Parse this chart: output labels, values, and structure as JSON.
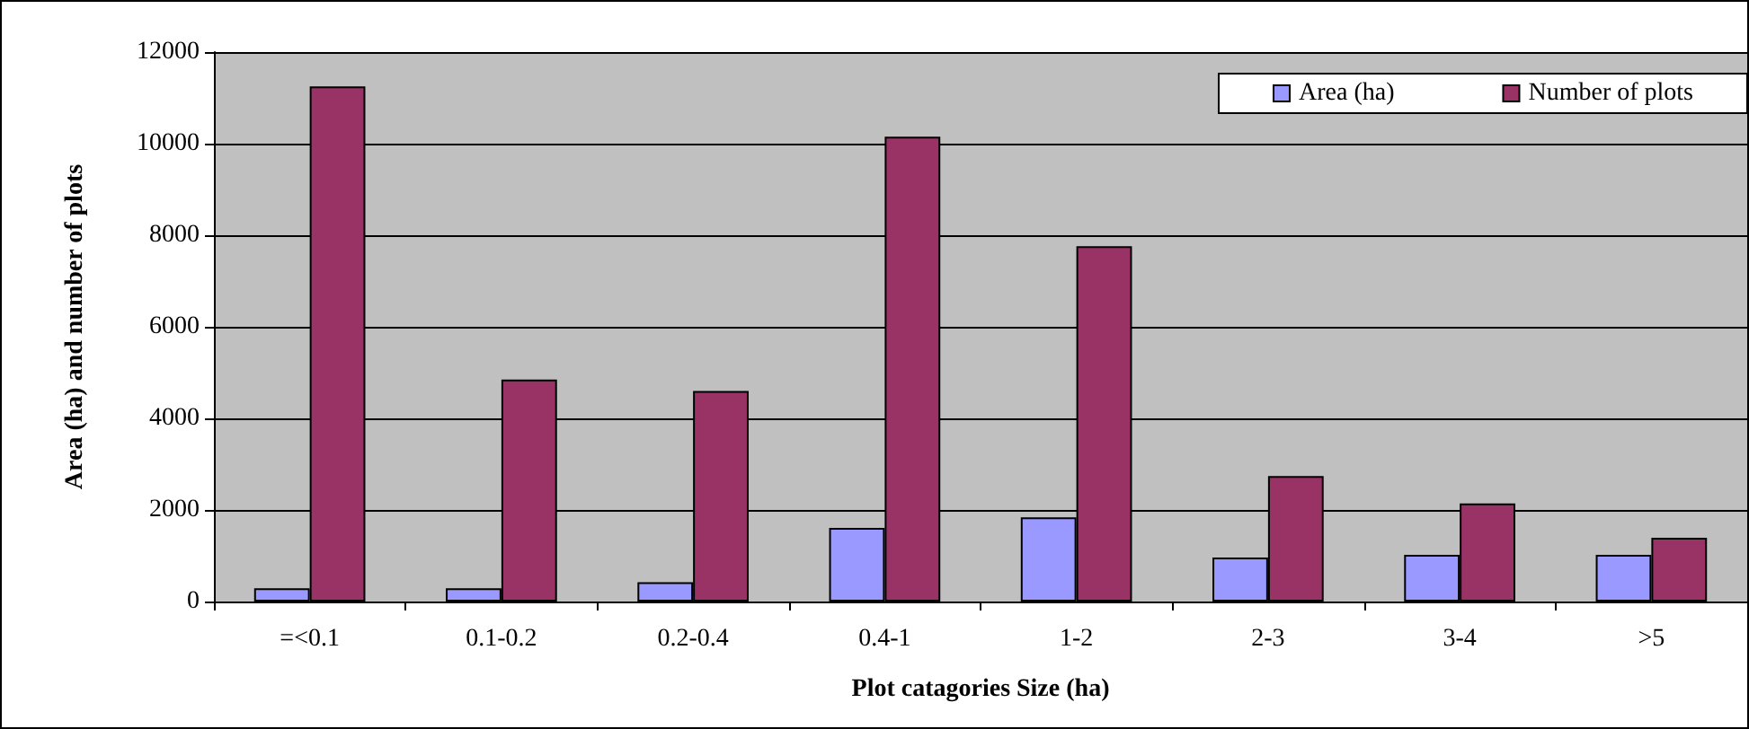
{
  "chart_data": {
    "type": "bar",
    "xlabel": "Plot catagories Size (ha)",
    "ylabel": "Area (ha) and number of plots",
    "categories": [
      "=<0.1",
      "0.1-0.2",
      "0.2-0.4",
      "0.4-1",
      "1-2",
      "2-3",
      "3-4",
      ">5"
    ],
    "series": [
      {
        "name": "Area (ha)",
        "color": "#9999ff",
        "values": [
          290,
          290,
          420,
          1610,
          1840,
          960,
          1020,
          1020
        ]
      },
      {
        "name": "Number of plots",
        "color": "#993366",
        "values": [
          11250,
          4850,
          4600,
          10150,
          7760,
          2740,
          2140,
          1390
        ]
      }
    ],
    "ylim": [
      0,
      12000
    ],
    "yticks": [
      0,
      2000,
      4000,
      6000,
      8000,
      10000,
      12000
    ],
    "grid": "y",
    "legend": "top right"
  }
}
